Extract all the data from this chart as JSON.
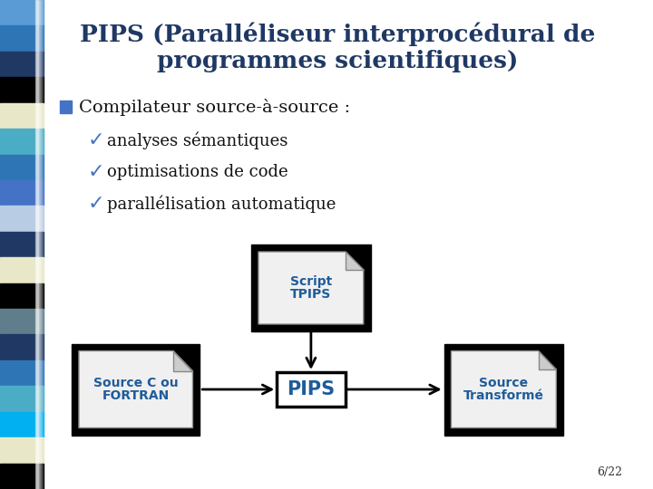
{
  "bg_color": "#ffffff",
  "title_line1": "PIPS (Paralléliseur interprocédural de",
  "title_line2": "programmes scientifiques)",
  "title_color": "#1F3864",
  "title_fontsize": 19,
  "bullet_color": "#4472C4",
  "bullet_text": "Compilateur source-à-source :",
  "bullet_fontsize": 14,
  "check_items": [
    "analyses sémantiques",
    "optimisations de code",
    "parallélisation automatique"
  ],
  "check_color": "#4472C4",
  "check_fontsize": 13,
  "diagram_text_color": "#1F5C99",
  "page_num": "6/22",
  "sidebar_colors": [
    "#5B9BD5",
    "#2E75B6",
    "#1F3864",
    "#000000",
    "#E8E8C8",
    "#4BACC6",
    "#2E75B6",
    "#4472C4",
    "#B8CCE4",
    "#1F3864",
    "#E8E8C8",
    "#000000",
    "#607D8B",
    "#1F3864",
    "#2E75B6",
    "#4BACC6",
    "#00B0F0",
    "#E8E8C8",
    "#000000"
  ]
}
